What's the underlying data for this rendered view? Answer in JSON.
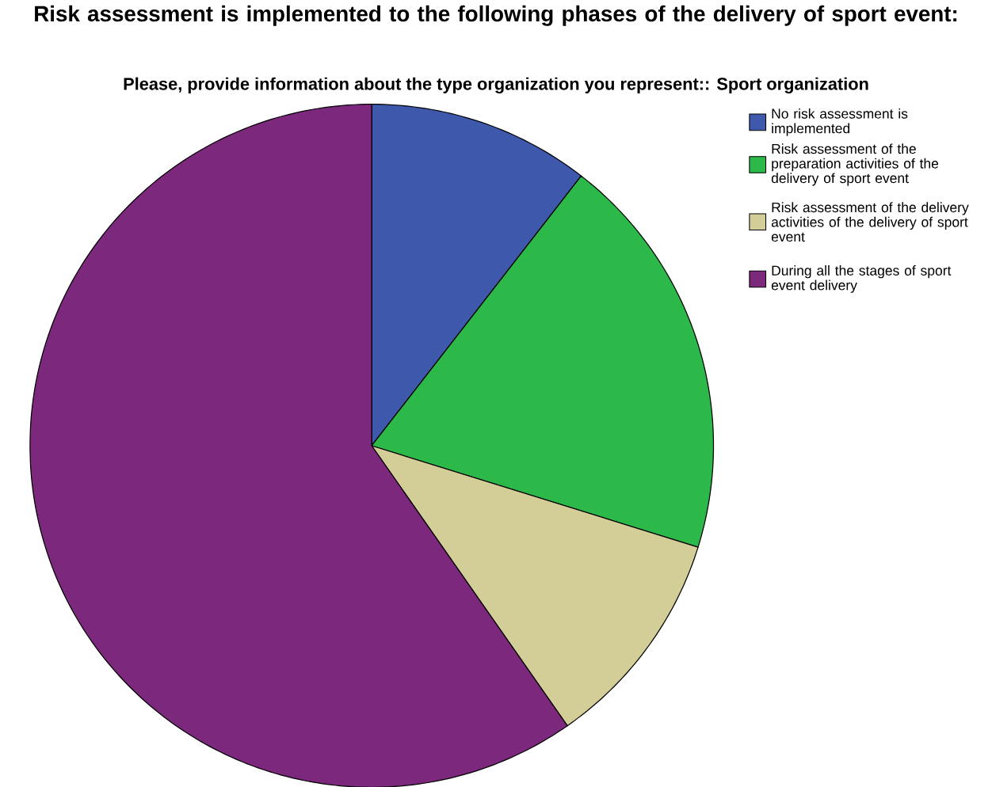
{
  "chart_data": {
    "type": "pie",
    "title": "Risk assessment is implemented to the following phases of the delivery of sport event:",
    "subtitle": "Please, provide information about the type organization you represent:: Sport organization",
    "categories": [
      "No risk assessment is implemented",
      "Risk assessment of the preparation activities of the delivery of sport event",
      "Risk assessment of the delivery activities of the delivery of sport event",
      "During all the stages of sport event delivery"
    ],
    "values": [
      10.5,
      19.3,
      10.5,
      59.7
    ],
    "colors": [
      "#3e58ac",
      "#2db84a",
      "#d3ce97",
      "#7b287d"
    ],
    "legend": "right"
  }
}
